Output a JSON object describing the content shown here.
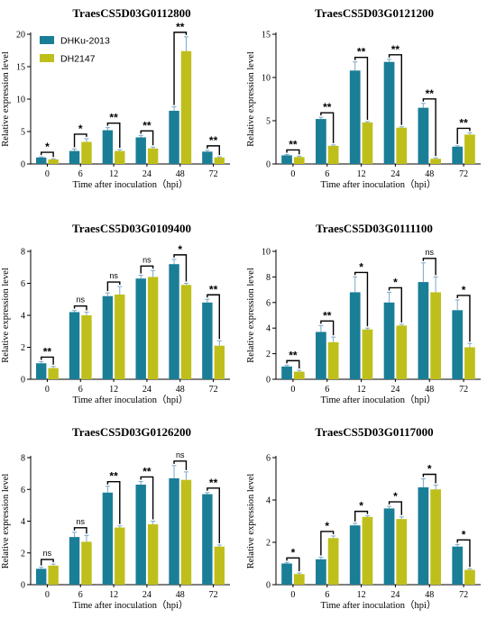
{
  "colors": {
    "DHKu-2013": "#1a7e97",
    "DH2147": "#bfbf1c",
    "error": "#7aa8c8"
  },
  "chart_data": [
    {
      "type": "bar",
      "title": "TraesCS5D03G0112800",
      "xlabel": "Time after inoculation（hpi）",
      "ylabel": "Relative expression level",
      "categories": [
        "0",
        "6",
        "12",
        "24",
        "48",
        "72"
      ],
      "ylim": [
        0,
        20
      ],
      "yticks": [
        "0",
        "5",
        "10",
        "15",
        "20"
      ],
      "legend": {
        "position": "top-left",
        "entries": [
          "DHKu-2013",
          "DH2147"
        ]
      },
      "series": [
        {
          "name": "DHKu-2013",
          "values": [
            1.0,
            2.0,
            5.2,
            4.1,
            8.2,
            1.9
          ],
          "errors": [
            0.1,
            0.3,
            0.4,
            0.3,
            0.6,
            0.2
          ]
        },
        {
          "name": "DH2147",
          "values": [
            0.7,
            3.4,
            2.0,
            2.4,
            17.4,
            1.0
          ],
          "errors": [
            0.1,
            0.5,
            0.2,
            0.2,
            2.2,
            0.1
          ]
        }
      ],
      "significance": [
        "*",
        "*",
        "**",
        "**",
        "**",
        "**"
      ]
    },
    {
      "type": "bar",
      "title": "TraesCS5D03G0121200",
      "xlabel": "Time after inoculation（hpi）",
      "ylabel": "Relative expression level",
      "categories": [
        "0",
        "6",
        "12",
        "24",
        "48",
        "72"
      ],
      "ylim": [
        0,
        15
      ],
      "yticks": [
        "0",
        "5",
        "10",
        "15"
      ],
      "series": [
        {
          "name": "DHKu-2013",
          "values": [
            1.0,
            5.2,
            10.8,
            11.8,
            6.5,
            2.0
          ],
          "errors": [
            0.1,
            0.2,
            1.0,
            0.3,
            0.5,
            0.1
          ]
        },
        {
          "name": "DH2147",
          "values": [
            0.8,
            2.1,
            4.8,
            4.2,
            0.6,
            3.4
          ],
          "errors": [
            0.1,
            0.1,
            0.1,
            0.1,
            0.1,
            0.2
          ]
        }
      ],
      "significance": [
        "**",
        "**",
        "**",
        "**",
        "**",
        "**"
      ]
    },
    {
      "type": "bar",
      "title": "TraesCS5D03G0109400",
      "xlabel": "Time after inoculation（hpi）",
      "ylabel": "Relative expression level",
      "categories": [
        "0",
        "6",
        "12",
        "24",
        "48",
        "72"
      ],
      "ylim": [
        0,
        8
      ],
      "yticks": [
        "0",
        "2",
        "4",
        "6",
        "8"
      ],
      "series": [
        {
          "name": "DHKu-2013",
          "values": [
            1.0,
            4.2,
            5.2,
            6.3,
            7.2,
            4.8
          ],
          "errors": [
            0.1,
            0.1,
            0.2,
            0.2,
            0.3,
            0.2
          ]
        },
        {
          "name": "DH2147",
          "values": [
            0.7,
            4.0,
            5.3,
            6.4,
            5.9,
            2.1
          ],
          "errors": [
            0.1,
            0.2,
            0.5,
            0.4,
            0.1,
            0.3
          ]
        }
      ],
      "significance": [
        "**",
        "ns",
        "ns",
        "ns",
        "*",
        "**"
      ]
    },
    {
      "type": "bar",
      "title": "TraesCS5D03G0111100",
      "xlabel": "Time after inoculation（hpi）",
      "ylabel": "Relative expression level",
      "categories": [
        "0",
        "6",
        "12",
        "24",
        "48",
        "72"
      ],
      "ylim": [
        0,
        10
      ],
      "yticks": [
        "0",
        "2",
        "4",
        "6",
        "8",
        "10"
      ],
      "series": [
        {
          "name": "DHKu-2013",
          "values": [
            1.0,
            3.7,
            6.8,
            6.0,
            7.6,
            5.4
          ],
          "errors": [
            0.1,
            0.5,
            1.2,
            0.8,
            1.5,
            0.8
          ]
        },
        {
          "name": "DH2147",
          "values": [
            0.6,
            2.9,
            3.9,
            4.2,
            6.8,
            2.5
          ],
          "errors": [
            0.1,
            0.4,
            0.1,
            0.1,
            1.2,
            0.3
          ]
        }
      ],
      "significance": [
        "**",
        "**",
        "*",
        "*",
        "ns",
        "*"
      ]
    },
    {
      "type": "bar",
      "title": "TraesCS5D03G0126200",
      "xlabel": "Time after inoculation（hpi）",
      "ylabel": "Relative expression level",
      "categories": [
        "0",
        "6",
        "12",
        "24",
        "48",
        "72"
      ],
      "ylim": [
        0,
        8
      ],
      "yticks": [
        "0",
        "2",
        "4",
        "6",
        "8"
      ],
      "series": [
        {
          "name": "DHKu-2013",
          "values": [
            1.0,
            3.0,
            5.8,
            6.3,
            6.7,
            5.7
          ],
          "errors": [
            0.1,
            0.3,
            0.4,
            0.2,
            0.8,
            0.1
          ]
        },
        {
          "name": "DH2147",
          "values": [
            1.2,
            2.7,
            3.6,
            3.8,
            6.6,
            2.4
          ],
          "errors": [
            0.1,
            0.4,
            0.1,
            0.2,
            0.5,
            0.1
          ]
        }
      ],
      "significance": [
        "ns",
        "ns",
        "**",
        "**",
        "ns",
        "**"
      ]
    },
    {
      "type": "bar",
      "title": "TraesCS5D03G0117000",
      "xlabel": "Time after inoculation（hpi）",
      "ylabel": "Relative expression level",
      "categories": [
        "0",
        "6",
        "12",
        "24",
        "48",
        "72"
      ],
      "ylim": [
        0,
        6
      ],
      "yticks": [
        "0",
        "2",
        "4",
        "6"
      ],
      "series": [
        {
          "name": "DHKu-2013",
          "values": [
            1.0,
            1.2,
            2.8,
            3.6,
            4.6,
            1.8
          ],
          "errors": [
            0.05,
            0.1,
            0.1,
            0.1,
            0.4,
            0.1
          ]
        },
        {
          "name": "DH2147",
          "values": [
            0.5,
            2.2,
            3.2,
            3.1,
            4.5,
            0.7
          ],
          "errors": [
            0.05,
            0.1,
            0.05,
            0.1,
            0.2,
            0.05
          ]
        }
      ],
      "significance": [
        "*",
        "*",
        "*",
        "*",
        "*",
        "*"
      ]
    }
  ]
}
